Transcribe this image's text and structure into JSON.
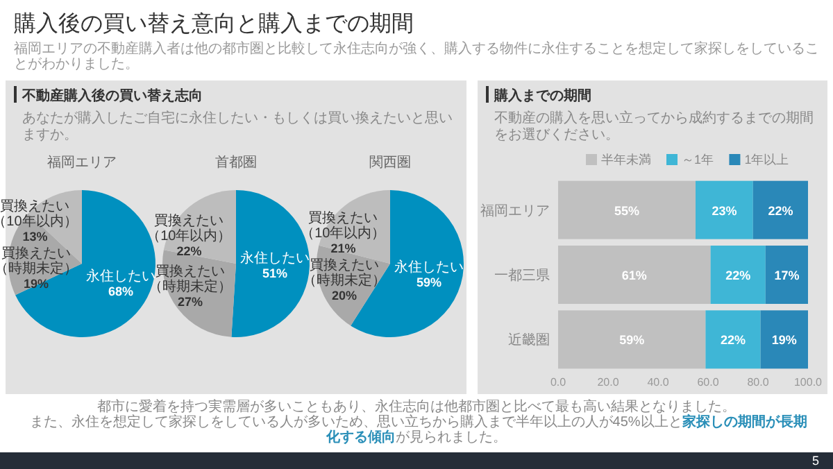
{
  "chart_data": [
    {
      "type": "other",
      "title": "購入後の買い替え意向と購入までの期間",
      "subtitle": "福岡エリアの不動産購入者は他の都市圏と比較して永住志向が強く、購入する物件に永住することを想定して家探しをしていることがわかりました。",
      "annotations": [
        "都市に愛着を持つ実需層が多いこともあり、永住志向は他都市圏と比べて最も高い結果となりました。",
        "また、永住を想定して家探しをしている人が多いため、思い立ちから購入まで半年以上の人が45%以上と**家探しの期間が長期化する傾向**が見られました。",
        "5"
      ]
    },
    {
      "type": "other",
      "title": "不動産購入後の買い替え志向",
      "subtitle": "あなたが購入したご自宅に永住したい・もしくは買い換えたいと思いますか。"
    },
    {
      "type": "pie",
      "title": "福岡エリア",
      "categories": [
        "永住したい",
        "買換えたい（時期未定）",
        "買換えたい（10年以内）"
      ],
      "values": [
        68,
        19,
        13
      ],
      "value_labels": [
        "68%",
        "19%",
        "13%"
      ],
      "colors": [
        "#0090bf",
        "#a9a9a9",
        "#bdbdbd"
      ]
    },
    {
      "type": "pie",
      "title": "首都圏",
      "categories": [
        "永住したい",
        "買換えたい（時期未定）",
        "買換えたい（10年以内）"
      ],
      "values": [
        51,
        27,
        22
      ],
      "value_labels": [
        "51%",
        "27%",
        "22%"
      ],
      "colors": [
        "#0090bf",
        "#a9a9a9",
        "#bdbdbd"
      ]
    },
    {
      "type": "pie",
      "title": "関西圏",
      "categories": [
        "永住したい",
        "買換えたい（時期未定）",
        "買換えたい（10年以内）"
      ],
      "values": [
        59,
        20,
        21
      ],
      "value_labels": [
        "59%",
        "20%",
        "21%"
      ],
      "colors": [
        "#0090bf",
        "#a9a9a9",
        "#bdbdbd"
      ]
    },
    {
      "type": "bar",
      "title": "購入までの期間",
      "subtitle": "不動産の購入を思い立ってから成約するまでの期間をお選びください。",
      "orientation": "horizontal",
      "stacked": true,
      "legend": "top",
      "categories": [
        "福岡エリア",
        "一都三県",
        "近畿圏"
      ],
      "xlim": [
        0,
        100
      ],
      "xticks": [
        {
          "value": 0,
          "label": "0.0"
        },
        {
          "value": 20,
          "label": "20.0"
        },
        {
          "value": 40,
          "label": "40.0"
        },
        {
          "value": 60,
          "label": "60.0"
        },
        {
          "value": 80,
          "label": "80.0"
        },
        {
          "value": 100,
          "label": "100.0"
        }
      ],
      "series": [
        {
          "name": "半年未満",
          "color": "#c0c0c0",
          "values": [
            55,
            61,
            59
          ],
          "value_labels": [
            "55%",
            "61%",
            "59%"
          ]
        },
        {
          "name": "～1年",
          "color": "#3fb6d6",
          "values": [
            23,
            22,
            22
          ],
          "value_labels": [
            "23%",
            "22%",
            "22%"
          ]
        },
        {
          "name": "1年以上",
          "color": "#2a88b8",
          "values": [
            22,
            17,
            19
          ],
          "value_labels": [
            "22%",
            "17%",
            "19%"
          ]
        }
      ]
    }
  ]
}
